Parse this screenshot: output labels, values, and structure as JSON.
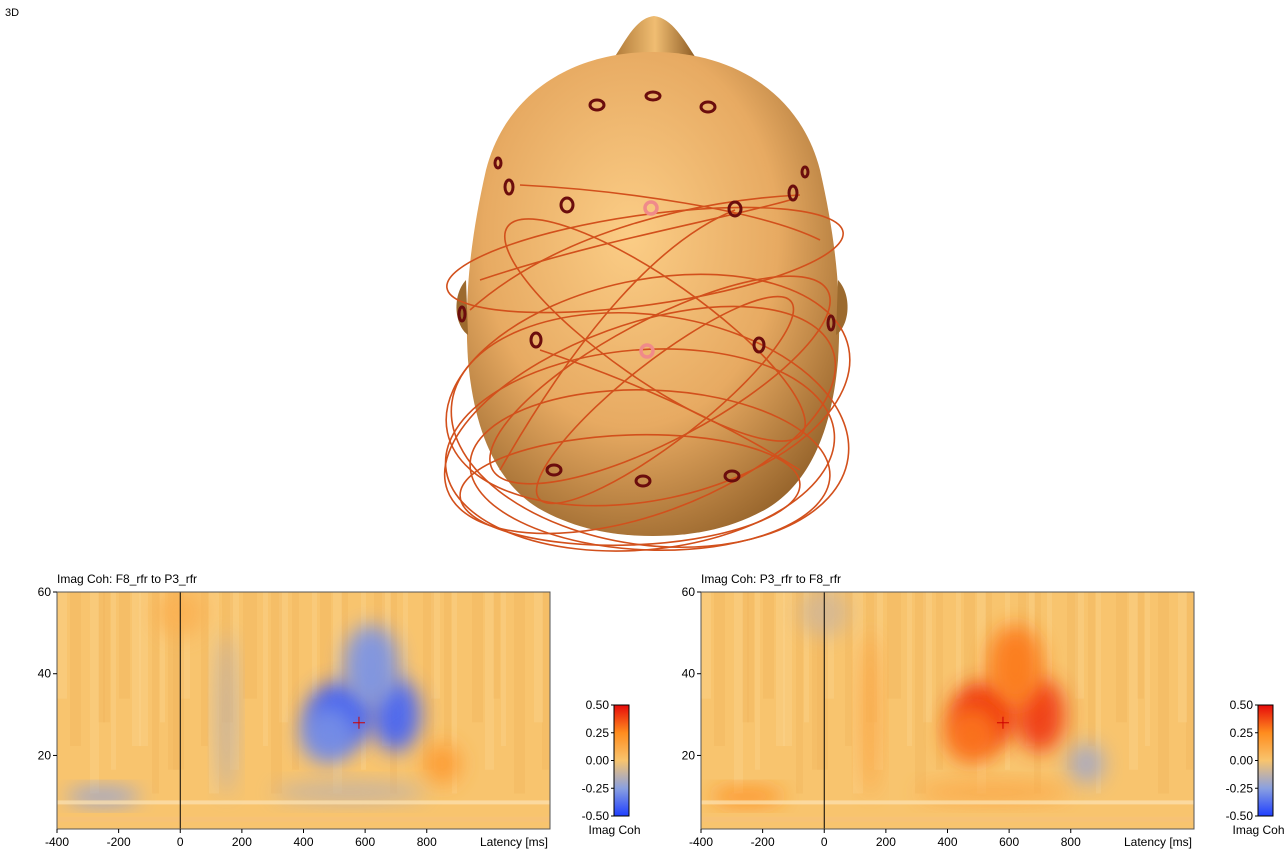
{
  "view_label": "3D",
  "colors": {
    "head_light": "#fbcd86",
    "head_mid": "#e7aa62",
    "head_dark": "#8c5b24",
    "electrode": "#6b0d0d",
    "electrode_highlight": "#f08a8a",
    "link": "#d2501c",
    "heatmap_background": "#f8c46e",
    "neg_color": "#1f3fff",
    "pos_color": "#e61a0a"
  },
  "chart_data": [
    {
      "type": "heatmap",
      "title": "Imag Coh: F8_rfr to P3_rfr",
      "xlabel": "Latency [ms]",
      "ylabel": "",
      "xlim": [
        -400,
        1200
      ],
      "ylim": [
        2,
        60
      ],
      "x_ticks": [
        "-400",
        "-200",
        "0",
        "200",
        "400",
        "600",
        "800"
      ],
      "y_ticks": [
        "20",
        "40",
        "60"
      ],
      "cursor": {
        "latency_ms": 580,
        "frequency": 28
      },
      "event_marker_latency": 0,
      "colorbar": {
        "label": "Imag Coh",
        "min": -0.5,
        "max": 0.5,
        "ticks": [
          "0.50",
          "0.25",
          "0.00",
          "-0.25",
          "-0.50"
        ]
      },
      "regions": [
        {
          "x": 520,
          "y": 30,
          "sx": 110,
          "sy": 8,
          "value": -0.42
        },
        {
          "x": 700,
          "y": 30,
          "sx": 80,
          "sy": 9,
          "value": -0.4
        },
        {
          "x": 620,
          "y": 42,
          "sx": 90,
          "sy": 10,
          "value": -0.28
        },
        {
          "x": 480,
          "y": 25,
          "sx": 90,
          "sy": 7,
          "value": -0.3
        },
        {
          "x": 850,
          "y": 18,
          "sx": 60,
          "sy": 5,
          "value": 0.18
        },
        {
          "x": -250,
          "y": 10,
          "sx": 120,
          "sy": 2,
          "value": -0.25
        },
        {
          "x": 550,
          "y": 11,
          "sx": 250,
          "sy": 2.5,
          "value": -0.12
        },
        {
          "x": 150,
          "y": 30,
          "sx": 30,
          "sy": 20,
          "value": -0.12
        },
        {
          "x": 0,
          "y": 55,
          "sx": 80,
          "sy": 6,
          "value": 0.08
        }
      ]
    },
    {
      "type": "heatmap",
      "title": "Imag Coh: P3_rfr to F8_rfr",
      "xlabel": "Latency [ms]",
      "ylabel": "",
      "xlim": [
        -400,
        1200
      ],
      "ylim": [
        2,
        60
      ],
      "x_ticks": [
        "-400",
        "-200",
        "0",
        "200",
        "400",
        "600",
        "800"
      ],
      "y_ticks": [
        "20",
        "40",
        "60"
      ],
      "cursor": {
        "latency_ms": 580,
        "frequency": 28
      },
      "event_marker_latency": 0,
      "colorbar": {
        "label": "Imag Coh",
        "min": -0.5,
        "max": 0.5,
        "ticks": [
          "0.50",
          "0.25",
          "0.00",
          "-0.25",
          "-0.50"
        ]
      },
      "regions": [
        {
          "x": 520,
          "y": 30,
          "sx": 110,
          "sy": 8,
          "value": 0.42
        },
        {
          "x": 700,
          "y": 30,
          "sx": 80,
          "sy": 9,
          "value": 0.4
        },
        {
          "x": 620,
          "y": 42,
          "sx": 90,
          "sy": 10,
          "value": 0.28
        },
        {
          "x": 480,
          "y": 25,
          "sx": 90,
          "sy": 7,
          "value": 0.3
        },
        {
          "x": 850,
          "y": 18,
          "sx": 60,
          "sy": 5,
          "value": -0.18
        },
        {
          "x": -250,
          "y": 10,
          "sx": 120,
          "sy": 2,
          "value": 0.25
        },
        {
          "x": 550,
          "y": 11,
          "sx": 250,
          "sy": 2.5,
          "value": 0.12
        },
        {
          "x": 150,
          "y": 30,
          "sx": 30,
          "sy": 20,
          "value": 0.12
        },
        {
          "x": 0,
          "y": 55,
          "sx": 80,
          "sy": 6,
          "value": -0.08
        }
      ]
    }
  ]
}
